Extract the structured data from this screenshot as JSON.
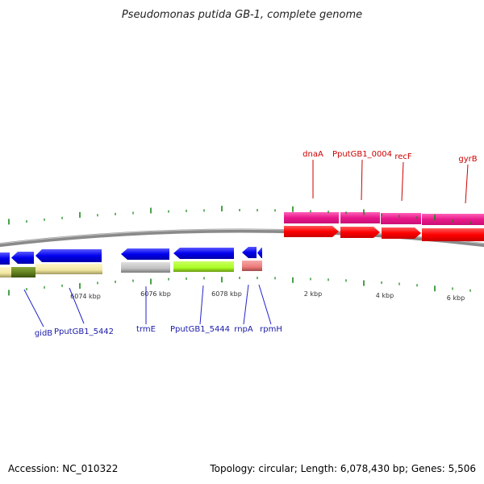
{
  "title": "Pseudomonas putida GB-1, complete genome",
  "accession": "Accession: NC_010322",
  "summary": "Topology: circular; Length: 6,078,430 bp; Genes: 5,506",
  "kbp_labels": [
    "6074 kbp",
    "6076 kbp",
    "6078 kbp",
    "2 kbp",
    "4 kbp",
    "6 kbp"
  ],
  "reverse_strand_genes": [
    "gidB",
    "PputGB1_5442",
    "trmE",
    "PputGB1_5444",
    "rnpA",
    "rpmH"
  ],
  "forward_strand_genes": [
    "dnaA",
    "PputGB1_0004",
    "recF",
    "gyrB"
  ],
  "colors": {
    "reverse_cds": "#0000ee",
    "forward_cds": "#ff0000",
    "forward_gene": "#e8198b",
    "reverse_label": "#1a1aaa",
    "forward_label": "#cc0000",
    "tick": "#1a8a1a",
    "backbone": "#8a8a8a"
  }
}
